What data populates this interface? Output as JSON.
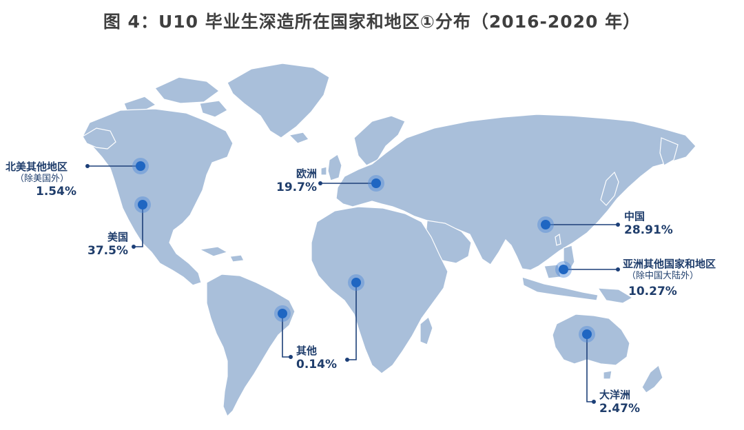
{
  "title": "图 4：U10 毕业生深造所在国家和地区①分布（2016-2020 年）",
  "colors": {
    "land": "#a9bfda",
    "line": "#1c3f78",
    "dot": "#1f66c2",
    "text": "#1f3d6b"
  },
  "regions": {
    "north_america_other": {
      "name": "北美其他地区",
      "sub": "（除美国外）",
      "value": "1.54%"
    },
    "usa": {
      "name": "美国",
      "value": "37.5%"
    },
    "europe": {
      "name": "欧洲",
      "value": "19.7%"
    },
    "china": {
      "name": "中国",
      "value": "28.91%"
    },
    "asia_other": {
      "name": "亚洲其他国家和地区",
      "sub": "（除中国大陆外）",
      "value": "10.27%"
    },
    "other": {
      "name": "其他",
      "value": "0.14%"
    },
    "oceania": {
      "name": "大洋洲",
      "value": "2.47%"
    }
  }
}
